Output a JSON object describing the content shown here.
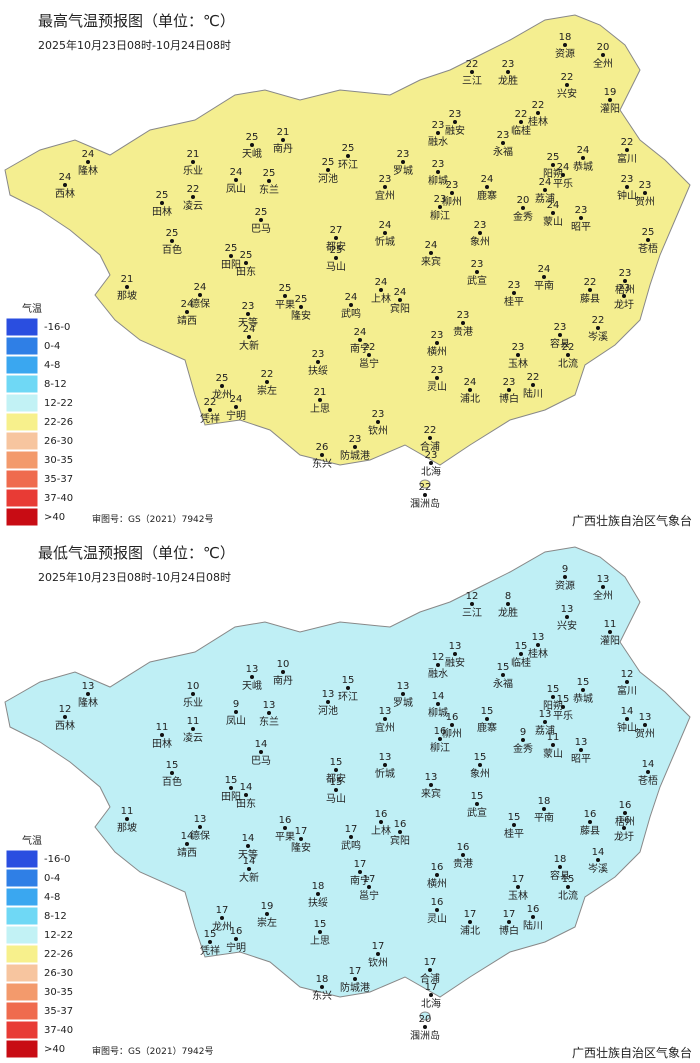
{
  "maps": [
    {
      "title": "最高气温预报图（单位：℃）",
      "period": "2025年10月23日08时-10月24日08时",
      "values": [
        18,
        20,
        22,
        23,
        22,
        19,
        23,
        23,
        22,
        22,
        23,
        22,
        24,
        25,
        24,
        23,
        23,
        24,
        24,
        23,
        20,
        25,
        24,
        23,
        23,
        23,
        23,
        23,
        25,
        21,
        25,
        25,
        23,
        21,
        24,
        25,
        24,
        24,
        25,
        22,
        25,
        27,
        25,
        24,
        24,
        25,
        25,
        25,
        21,
        24,
        24,
        23,
        24,
        25,
        25,
        24,
        24,
        24,
        23,
        24,
        23,
        22,
        23,
        23,
        22,
        23,
        23,
        22,
        23,
        23,
        24,
        22,
        23,
        22,
        25,
        22,
        24,
        21,
        23,
        24,
        23,
        22,
        23,
        23,
        26,
        22,
        23,
        22
      ]
    },
    {
      "title": "最低气温预报图（单位：℃）",
      "period": "2025年10月23日08时-10月24日08时",
      "values": [
        9,
        13,
        12,
        8,
        13,
        11,
        13,
        12,
        15,
        13,
        15,
        12,
        15,
        15,
        15,
        14,
        13,
        13,
        11,
        13,
        9,
        14,
        15,
        14,
        16,
        16,
        15,
        13,
        15,
        10,
        13,
        13,
        13,
        10,
        9,
        13,
        13,
        12,
        11,
        11,
        14,
        15,
        15,
        13,
        13,
        15,
        15,
        14,
        11,
        13,
        14,
        14,
        14,
        16,
        17,
        17,
        16,
        16,
        15,
        18,
        15,
        16,
        16,
        16,
        14,
        16,
        18,
        15,
        17,
        16,
        17,
        17,
        18,
        19,
        17,
        15,
        16,
        15,
        16,
        17,
        17,
        16,
        17,
        17,
        18,
        17,
        17,
        20
      ]
    }
  ],
  "stations": [
    "资源",
    "全州",
    "三江",
    "龙胜",
    "兴安",
    "灌阳",
    "融安",
    "融水",
    "临桂",
    "桂林",
    "永福",
    "富川",
    "恭城",
    "阳朔",
    "平乐",
    "钟山",
    "贺州",
    "荔浦",
    "蒙山",
    "昭平",
    "金秀",
    "苍梧",
    "鹿寨",
    "柳城",
    "柳州",
    "柳江",
    "象州",
    "罗城",
    "环江",
    "南丹",
    "天峨",
    "河池",
    "宜州",
    "乐业",
    "凤山",
    "东兰",
    "隆林",
    "西林",
    "田林",
    "凌云",
    "巴马",
    "都安",
    "马山",
    "忻城",
    "来宾",
    "百色",
    "田阳",
    "田东",
    "那坡",
    "德保",
    "靖西",
    "天等",
    "大新",
    "平果",
    "隆安",
    "武鸣",
    "上林",
    "宾阳",
    "武宣",
    "平南",
    "桂平",
    "藤县",
    "龙圩",
    "梧州",
    "岑溪",
    "贵港",
    "容县",
    "北流",
    "玉林",
    "横州",
    "南宁",
    "邕宁",
    "扶绥",
    "崇左",
    "龙州",
    "凭祥",
    "宁明",
    "上思",
    "灵山",
    "浦北",
    "博白",
    "陆川",
    "钦州",
    "防城港",
    "东兴",
    "合浦",
    "北海",
    "涠洲岛"
  ],
  "legend": {
    "title": "气温",
    "items": [
      "-16-0",
      "0-4",
      "4-8",
      "8-12",
      "12-22",
      "22-26",
      "26-30",
      "30-35",
      "35-37",
      "37-40",
      ">40"
    ]
  },
  "footer": {
    "approval": "审图号：GS（2021）7942号",
    "source": "广西壮族自治区气象台"
  }
}
